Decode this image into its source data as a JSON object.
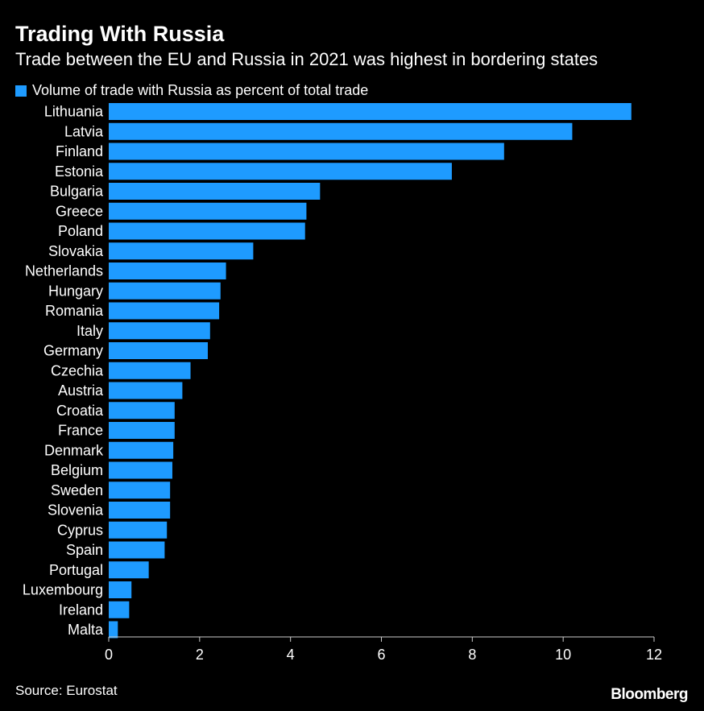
{
  "header": {
    "title": "Trading With Russia",
    "subtitle": "Trade between the EU and Russia in 2021 was highest in bordering states"
  },
  "footer": {
    "source": "Source: Eurostat",
    "logo": "Bloomberg"
  },
  "colors": {
    "bar": "#1e9bff",
    "background": "#000000",
    "text": "#ffffff",
    "axis": "#cccccc"
  },
  "chart_data": {
    "type": "bar",
    "orientation": "horizontal",
    "categories": [
      "Lithuania",
      "Latvia",
      "Finland",
      "Estonia",
      "Bulgaria",
      "Greece",
      "Poland",
      "Slovakia",
      "Netherlands",
      "Hungary",
      "Romania",
      "Italy",
      "Germany",
      "Czechia",
      "Austria",
      "Croatia",
      "France",
      "Denmark",
      "Belgium",
      "Sweden",
      "Slovenia",
      "Cyprus",
      "Spain",
      "Portugal",
      "Luxembourg",
      "Ireland",
      "Malta"
    ],
    "series": [
      {
        "name": "Volume of trade with Russia as percent of total trade",
        "values": [
          11.5,
          10.2,
          8.7,
          7.55,
          4.65,
          4.35,
          4.32,
          3.18,
          2.58,
          2.46,
          2.43,
          2.23,
          2.18,
          1.8,
          1.62,
          1.45,
          1.45,
          1.42,
          1.4,
          1.35,
          1.35,
          1.28,
          1.23,
          0.88,
          0.5,
          0.45,
          0.2
        ]
      }
    ],
    "xlim": [
      0,
      12
    ],
    "xticks": [
      "0",
      "2",
      "4",
      "6",
      "8",
      "10",
      "12"
    ],
    "xlabel": "",
    "ylabel": "",
    "legend": "top-left",
    "grid": false
  }
}
